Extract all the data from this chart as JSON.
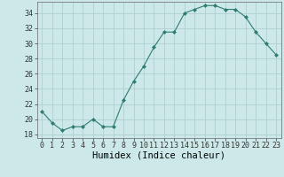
{
  "x": [
    0,
    1,
    2,
    3,
    4,
    5,
    6,
    7,
    8,
    9,
    10,
    11,
    12,
    13,
    14,
    15,
    16,
    17,
    18,
    19,
    20,
    21,
    22,
    23
  ],
  "y": [
    21.0,
    19.5,
    18.5,
    19.0,
    19.0,
    20.0,
    19.0,
    19.0,
    22.5,
    25.0,
    27.0,
    29.5,
    31.5,
    31.5,
    34.0,
    34.5,
    35.0,
    35.0,
    34.5,
    34.5,
    33.5,
    31.5,
    30.0,
    28.5
  ],
  "line_color": "#2e7d6e",
  "marker": "D",
  "marker_size": 2.0,
  "bg_color": "#cce8e8",
  "grid_color": "#aacccc",
  "xlabel": "Humidex (Indice chaleur)",
  "xlim": [
    -0.5,
    23.5
  ],
  "ylim": [
    17.5,
    35.5
  ],
  "yticks": [
    18,
    20,
    22,
    24,
    26,
    28,
    30,
    32,
    34
  ],
  "tick_fontsize": 6.0,
  "xlabel_fontsize": 7.5
}
